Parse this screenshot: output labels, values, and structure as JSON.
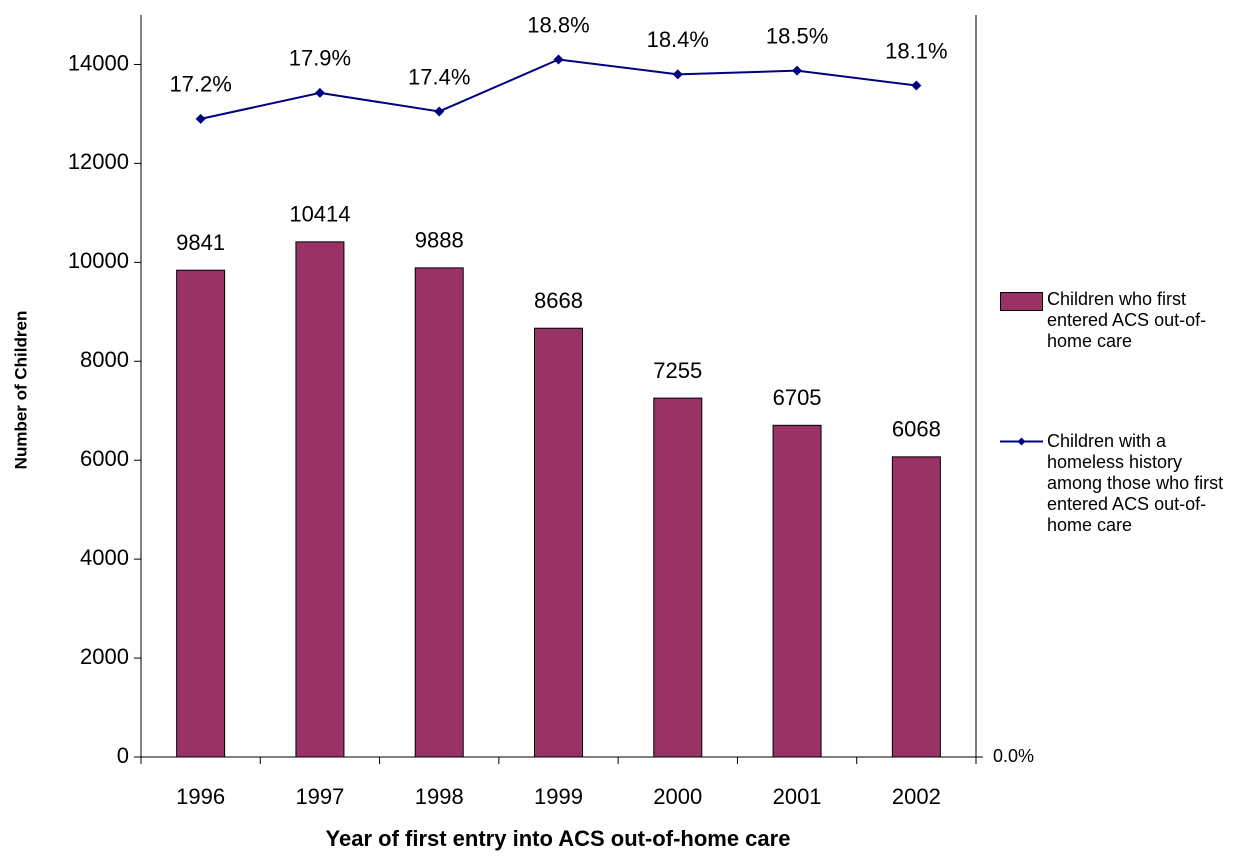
{
  "chart_data": {
    "type": "bar_line",
    "categories": [
      "1996",
      "1997",
      "1998",
      "1999",
      "2000",
      "2001",
      "2002"
    ],
    "series": [
      {
        "name": "Children who first entered ACS out-of-home care",
        "type": "bar",
        "color": "#993366",
        "values": [
          9841,
          10414,
          9888,
          8668,
          7255,
          6705,
          6068
        ]
      },
      {
        "name": "Children with a homeless history among those who first entered ACS out-of-home care",
        "type": "line",
        "axis": "y2",
        "color": "#000080",
        "values": [
          17.2,
          17.9,
          17.4,
          18.8,
          18.4,
          18.5,
          18.1
        ],
        "value_labels": [
          "17.2%",
          "17.9%",
          "17.4%",
          "18.8%",
          "18.4%",
          "18.5%",
          "18.1%"
        ]
      }
    ],
    "ylim": [
      0,
      15000
    ],
    "yticks": [
      0,
      2000,
      4000,
      6000,
      8000,
      10000,
      12000,
      14000
    ],
    "y2lim": [
      0,
      20
    ],
    "y2ticks": [
      {
        "value": 0,
        "label": "0.0%"
      }
    ],
    "y_label": "Number of Children",
    "x_label": "Year of first entry into ACS out-of-home care",
    "legend": "right"
  }
}
